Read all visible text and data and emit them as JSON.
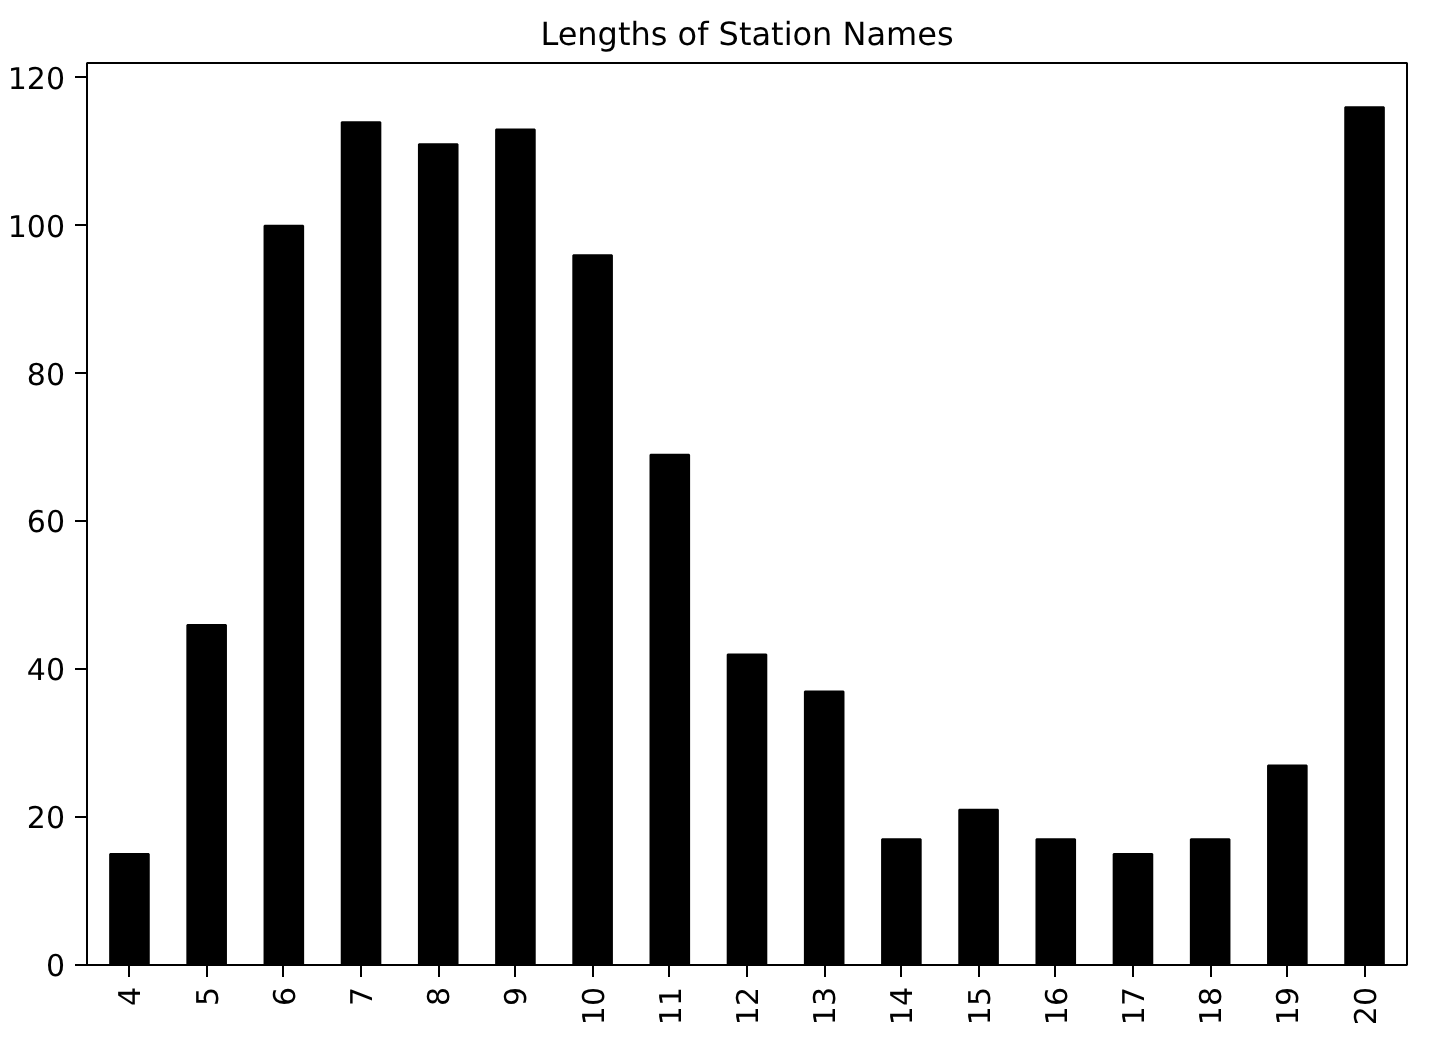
{
  "chart_data": {
    "type": "bar",
    "title": "Lengths of Station Names",
    "categories": [
      "4",
      "5",
      "6",
      "7",
      "8",
      "9",
      "10",
      "11",
      "12",
      "13",
      "14",
      "15",
      "16",
      "17",
      "18",
      "19",
      "20"
    ],
    "values": [
      15,
      46,
      100,
      114,
      111,
      113,
      96,
      69,
      42,
      37,
      17,
      21,
      17,
      15,
      17,
      27,
      116
    ],
    "color": "#000000",
    "ylim": [
      0,
      122
    ],
    "yticks": [
      0,
      20,
      40,
      60,
      80,
      100,
      120
    ],
    "grid": false
  }
}
